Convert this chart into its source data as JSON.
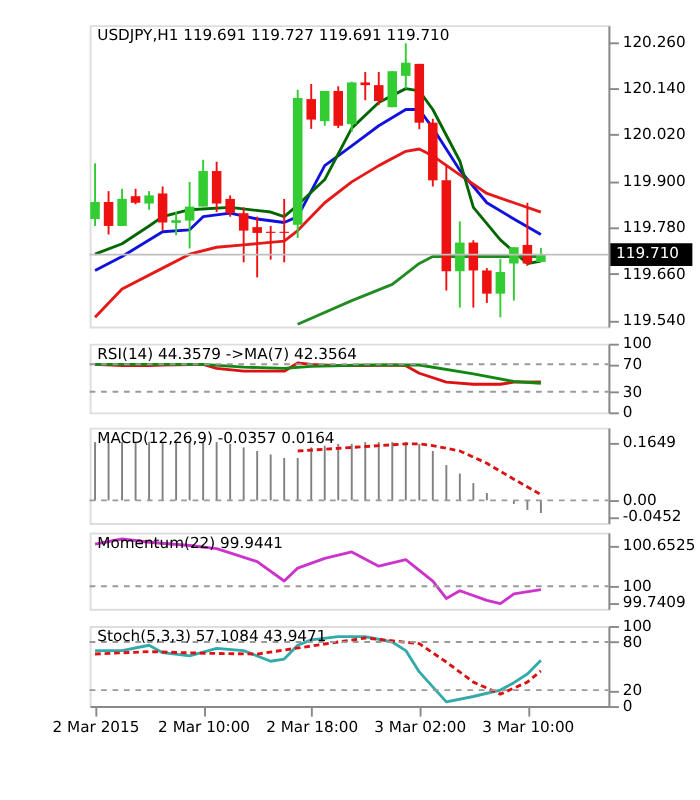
{
  "chart_data": [
    {
      "type": "candlestick",
      "title": "USDJPY,H1  119.691 119.727 119.691 119.710",
      "x": [
        "2015-03-02T02:00",
        "2015-03-02T03:00",
        "2015-03-02T04:00",
        "2015-03-02T05:00",
        "2015-03-02T06:00",
        "2015-03-02T07:00",
        "2015-03-02T08:00",
        "2015-03-02T09:00",
        "2015-03-02T10:00",
        "2015-03-02T11:00",
        "2015-03-02T12:00",
        "2015-03-02T13:00",
        "2015-03-02T14:00",
        "2015-03-02T15:00",
        "2015-03-02T16:00",
        "2015-03-02T17:00",
        "2015-03-02T18:00",
        "2015-03-02T19:00",
        "2015-03-02T20:00",
        "2015-03-02T21:00",
        "2015-03-02T22:00",
        "2015-03-02T23:00",
        "2015-03-03T00:00",
        "2015-03-03T01:00",
        "2015-03-03T02:00",
        "2015-03-03T03:00",
        "2015-03-03T04:00",
        "2015-03-03T05:00",
        "2015-03-03T06:00",
        "2015-03-03T07:00",
        "2015-03-03T08:00",
        "2015-03-03T09:00",
        "2015-03-03T10:00",
        "2015-03-03T11:00"
      ],
      "ohlc": [
        [
          119.802,
          119.946,
          119.784,
          119.846
        ],
        [
          119.846,
          119.874,
          119.762,
          119.784
        ],
        [
          119.784,
          119.88,
          119.784,
          119.854
        ],
        [
          119.861,
          119.88,
          119.84,
          119.844
        ],
        [
          119.842,
          119.874,
          119.826,
          119.863
        ],
        [
          119.868,
          119.886,
          119.772,
          119.793
        ],
        [
          119.792,
          119.82,
          119.76,
          119.799
        ],
        [
          119.798,
          119.898,
          119.726,
          119.834
        ],
        [
          119.834,
          119.955,
          119.834,
          119.926
        ],
        [
          119.926,
          119.95,
          119.82,
          119.842
        ],
        [
          119.854,
          119.863,
          119.808,
          119.817
        ],
        [
          119.817,
          119.832,
          119.69,
          119.772
        ],
        [
          119.781,
          119.808,
          119.651,
          119.766
        ],
        [
          119.769,
          119.784,
          119.697,
          119.766
        ],
        [
          119.769,
          119.854,
          119.69,
          119.766
        ],
        [
          119.787,
          120.136,
          119.753,
          120.115
        ],
        [
          120.112,
          120.151,
          120.035,
          120.059
        ],
        [
          120.055,
          120.133,
          120.043,
          120.133
        ],
        [
          120.133,
          120.145,
          120.037,
          120.043
        ],
        [
          120.047,
          120.157,
          120.027,
          120.155
        ],
        [
          120.155,
          120.182,
          120.109,
          120.148
        ],
        [
          120.148,
          120.182,
          120.097,
          120.107
        ],
        [
          120.091,
          120.184,
          120.091,
          120.184
        ],
        [
          120.172,
          120.256,
          120.139,
          120.206
        ],
        [
          120.203,
          120.203,
          120.034,
          120.051
        ],
        [
          120.051,
          120.061,
          119.886,
          119.902
        ],
        [
          119.902,
          119.94,
          119.617,
          119.667
        ],
        [
          119.667,
          119.796,
          119.573,
          119.741
        ],
        [
          119.741,
          119.747,
          119.573,
          119.669
        ],
        [
          119.669,
          119.675,
          119.585,
          119.609
        ],
        [
          119.609,
          119.699,
          119.548,
          119.665
        ],
        [
          119.687,
          119.729,
          119.591,
          119.729
        ],
        [
          119.735,
          119.844,
          119.681,
          119.687
        ],
        [
          119.691,
          119.727,
          119.691,
          119.71
        ]
      ],
      "colors": [
        "#33cc33",
        "#ee1111",
        "#33cc33",
        "#ee1111",
        "#33cc33",
        "#ee1111",
        "#33cc33",
        "#33cc33",
        "#33cc33",
        "#ee1111",
        "#ee1111",
        "#ee1111",
        "#ee1111",
        "#ee1111",
        "#ee1111",
        "#33cc33",
        "#ee1111",
        "#33cc33",
        "#ee1111",
        "#33cc33",
        "#ee1111",
        "#ee1111",
        "#33cc33",
        "#33cc33",
        "#ee1111",
        "#ee1111",
        "#ee1111",
        "#33cc33",
        "#ee1111",
        "#ee1111",
        "#33cc33",
        "#33cc33",
        "#ee1111",
        "#33cc33"
      ],
      "series": [
        {
          "type": "line",
          "color": "#1111dd",
          "x": [
            "2015-03-02T02:00",
            "2015-03-02T04:00",
            "2015-03-02T07:00",
            "2015-03-02T09:00",
            "2015-03-02T10:00",
            "2015-03-02T12:00",
            "2015-03-02T14:00",
            "2015-03-02T16:00",
            "2015-03-02T17:00",
            "2015-03-02T19:00",
            "2015-03-02T21:00",
            "2015-03-02T23:00",
            "2015-03-03T01:00",
            "2015-03-03T02:00",
            "2015-03-03T03:00",
            "2015-03-03T05:00",
            "2015-03-03T07:00",
            "2015-03-03T09:00",
            "2015-03-03T11:00"
          ],
          "values": [
            119.669,
            119.705,
            119.769,
            119.774,
            119.808,
            119.817,
            119.802,
            119.793,
            119.808,
            119.94,
            119.991,
            120.043,
            120.085,
            120.085,
            120.037,
            119.928,
            119.844,
            119.802,
            119.762
          ]
        },
        {
          "type": "line",
          "color": "#e61919",
          "x": [
            "2015-03-02T02:00",
            "2015-03-02T04:00",
            "2015-03-02T07:00",
            "2015-03-02T09:00",
            "2015-03-02T11:00",
            "2015-03-02T13:00",
            "2015-03-02T16:00",
            "2015-03-02T17:00",
            "2015-03-02T19:00",
            "2015-03-02T21:00",
            "2015-03-02T23:00",
            "2015-03-03T01:00",
            "2015-03-03T02:00",
            "2015-03-03T03:00",
            "2015-03-03T05:00",
            "2015-03-03T07:00",
            "2015-03-03T09:00",
            "2015-03-03T11:00"
          ],
          "values": [
            119.548,
            119.621,
            119.675,
            119.711,
            119.729,
            119.735,
            119.745,
            119.772,
            119.844,
            119.898,
            119.94,
            119.977,
            119.983,
            119.965,
            119.916,
            119.868,
            119.844,
            119.82
          ]
        },
        {
          "type": "line",
          "color": "#006600",
          "x": [
            "2015-03-02T02:00",
            "2015-03-02T04:00",
            "2015-03-02T06:00",
            "2015-03-02T07:00",
            "2015-03-02T09:00",
            "2015-03-02T12:00",
            "2015-03-02T15:00",
            "2015-03-02T16:00",
            "2015-03-02T17:00",
            "2015-03-02T19:00",
            "2015-03-02T21:00",
            "2015-03-02T23:00",
            "2015-03-03T01:00",
            "2015-03-03T02:00",
            "2015-03-03T03:00",
            "2015-03-03T05:00",
            "2015-03-03T06:00",
            "2015-03-03T08:00",
            "2015-03-03T09:00",
            "2015-03-03T10:00",
            "2015-03-03T11:00"
          ],
          "values": [
            119.711,
            119.738,
            119.784,
            119.808,
            119.826,
            119.832,
            119.82,
            119.808,
            119.838,
            119.904,
            120.037,
            120.103,
            120.139,
            120.133,
            120.085,
            119.952,
            119.832,
            119.748,
            119.717,
            119.687,
            119.693
          ]
        },
        {
          "type": "line",
          "color": "#228b22",
          "x": [
            "2015-03-02T17:00",
            "2015-03-02T21:00",
            "2015-03-03T00:00",
            "2015-03-03T02:00",
            "2015-03-03T03:00",
            "2015-03-03T11:00"
          ],
          "values": [
            119.53,
            119.591,
            119.633,
            119.687,
            119.705,
            119.705
          ]
        }
      ],
      "ref_lines": [
        {
          "axis": "y",
          "value": 119.71,
          "label": "119.710",
          "color": "#c0c0c0"
        }
      ],
      "xlim": [
        "2015-03-02T01:36",
        "2015-03-03T16:00"
      ],
      "ylim": [
        119.524,
        120.303
      ],
      "yticks": [
        {
          "value": 120.26,
          "label": "120.260"
        },
        {
          "value": 120.14,
          "label": "120.140"
        },
        {
          "value": 120.02,
          "label": "120.020"
        },
        {
          "value": 119.9,
          "label": "119.900"
        },
        {
          "value": 119.78,
          "label": "119.780"
        },
        {
          "value": 119.66,
          "label": "119.660"
        },
        {
          "value": 119.54,
          "label": "119.540"
        }
      ],
      "tick_labels": "y",
      "grid": false,
      "marker": "none"
    },
    {
      "type": "line",
      "title": "RSI(14) 44.3579  ->MA(7) 42.3564",
      "series": [
        {
          "color": "#dd1111",
          "x": [
            "2015-03-02T02:00",
            "2015-03-02T04:00",
            "2015-03-02T06:00",
            "2015-03-02T07:00",
            "2015-03-02T10:00",
            "2015-03-02T11:00",
            "2015-03-02T13:00",
            "2015-03-02T15:00",
            "2015-03-02T16:00",
            "2015-03-02T17:00",
            "2015-03-02T18:00",
            "2015-03-02T20:00",
            "2015-03-02T22:00",
            "2015-03-03T00:00",
            "2015-03-03T01:00",
            "2015-03-03T02:00",
            "2015-03-03T04:00",
            "2015-03-03T06:00",
            "2015-03-03T08:00",
            "2015-03-03T09:00",
            "2015-03-03T11:00"
          ],
          "values": [
            70,
            68,
            68,
            69,
            70,
            64,
            60,
            60,
            60,
            72,
            70,
            68,
            68,
            69,
            68,
            57,
            44,
            41,
            41,
            44,
            44.36
          ]
        },
        {
          "color": "#118811",
          "x": [
            "2015-03-02T02:00",
            "2015-03-02T10:00",
            "2015-03-02T13:00",
            "2015-03-02T16:00",
            "2015-03-02T18:00",
            "2015-03-02T22:00",
            "2015-03-03T02:00",
            "2015-03-03T06:00",
            "2015-03-03T09:00",
            "2015-03-03T11:00"
          ],
          "values": [
            70,
            70,
            66,
            64,
            67,
            69,
            69,
            56,
            45,
            42.36
          ]
        }
      ],
      "ref_lines": [
        {
          "axis": "y",
          "value": 70,
          "color": "#999999",
          "line_style": "dashed"
        },
        {
          "axis": "y",
          "value": 30,
          "color": "#999999",
          "line_style": "dashed"
        }
      ],
      "xlim": [
        "2015-03-02T01:36",
        "2015-03-03T16:00"
      ],
      "ylim": [
        0,
        100
      ],
      "yticks": [
        100,
        70,
        30,
        0
      ],
      "tick_labels": "y",
      "grid": false,
      "marker": "none"
    },
    {
      "type": "bar",
      "title": "MACD(12,26,9) -0.0357 0.0164",
      "x": [
        "2015-03-02T02:00",
        "2015-03-02T03:00",
        "2015-03-02T04:00",
        "2015-03-02T05:00",
        "2015-03-02T06:00",
        "2015-03-02T07:00",
        "2015-03-02T08:00",
        "2015-03-02T09:00",
        "2015-03-02T10:00",
        "2015-03-02T11:00",
        "2015-03-02T12:00",
        "2015-03-02T13:00",
        "2015-03-02T14:00",
        "2015-03-02T15:00",
        "2015-03-02T16:00",
        "2015-03-02T17:00",
        "2015-03-02T18:00",
        "2015-03-02T19:00",
        "2015-03-02T20:00",
        "2015-03-02T21:00",
        "2015-03-02T22:00",
        "2015-03-02T23:00",
        "2015-03-03T00:00",
        "2015-03-03T01:00",
        "2015-03-03T02:00",
        "2015-03-03T03:00",
        "2015-03-03T04:00",
        "2015-03-03T05:00",
        "2015-03-03T06:00",
        "2015-03-03T07:00",
        "2015-03-03T08:00",
        "2015-03-03T09:00",
        "2015-03-03T10:00",
        "2015-03-03T11:00"
      ],
      "series": [
        {
          "type": "bar",
          "color": "#808080",
          "values": [
            0.165,
            0.165,
            0.165,
            0.165,
            0.165,
            0.165,
            0.165,
            0.165,
            0.165,
            0.165,
            0.16,
            0.15,
            0.14,
            0.13,
            0.12,
            0.12,
            0.15,
            0.155,
            0.16,
            0.16,
            0.165,
            0.165,
            0.165,
            0.165,
            0.16,
            0.14,
            0.1,
            0.076,
            0.049,
            0.021,
            0.0,
            -0.01,
            -0.027,
            -0.0357
          ]
        },
        {
          "type": "line",
          "color": "#dd1111",
          "line_style": "dashed",
          "x": [
            "2015-03-02T17:00",
            "2015-03-02T19:00",
            "2015-03-02T21:00",
            "2015-03-02T23:00",
            "2015-03-03T01:00",
            "2015-03-03T02:00",
            "2015-03-03T03:00",
            "2015-03-03T05:00",
            "2015-03-03T07:00",
            "2015-03-03T09:00",
            "2015-03-03T11:00"
          ],
          "values": [
            0.14,
            0.145,
            0.15,
            0.155,
            0.16,
            0.16,
            0.155,
            0.14,
            0.105,
            0.06,
            0.0164
          ]
        }
      ],
      "ref_lines": [
        {
          "axis": "y",
          "value": 0,
          "color": "#999999",
          "line_style": "dashed"
        }
      ],
      "xlim": [
        "2015-03-02T01:36",
        "2015-03-03T16:00"
      ],
      "ylim": [
        -0.064,
        0.206
      ],
      "yticks": [
        0.1649,
        {
          "value": 0,
          "label": "0.00"
        },
        -0.0452
      ],
      "tick_labels": "y",
      "grid": false,
      "marker": "none"
    },
    {
      "type": "line",
      "title": "Momentum(22) 99.9441",
      "series": [
        {
          "color": "#cc33cc",
          "x": [
            "2015-03-02T02:00",
            "2015-03-02T04:00",
            "2015-03-02T06:00",
            "2015-03-02T09:00",
            "2015-03-02T11:00",
            "2015-03-02T14:00",
            "2015-03-02T16:00",
            "2015-03-02T17:00",
            "2015-03-02T19:00",
            "2015-03-02T21:00",
            "2015-03-02T23:00",
            "2015-03-03T01:00",
            "2015-03-03T03:00",
            "2015-03-03T04:00",
            "2015-03-03T05:00",
            "2015-03-03T07:00",
            "2015-03-03T08:00",
            "2015-03-03T09:00",
            "2015-03-03T11:00"
          ],
          "values": [
            100.673,
            100.756,
            100.704,
            100.653,
            100.601,
            100.394,
            100.083,
            100.29,
            100.445,
            100.549,
            100.321,
            100.425,
            100.083,
            99.803,
            99.927,
            99.772,
            99.72,
            99.876,
            99.9441
          ]
        }
      ],
      "ref_lines": [
        {
          "axis": "y",
          "value": 100,
          "color": "#999999",
          "line_style": "dashed"
        }
      ],
      "xlim": [
        "2015-03-02T01:36",
        "2015-03-03T16:00"
      ],
      "ylim": [
        99.637,
        100.86
      ],
      "yticks": [
        100.6525,
        100,
        99.7409
      ],
      "tick_labels": "y",
      "grid": false,
      "marker": "none"
    },
    {
      "type": "line",
      "title": "Stoch(5,3,3) 57.1084 43.9471",
      "series": [
        {
          "color": "#33aaaa",
          "x": [
            "2015-03-02T02:00",
            "2015-03-02T04:00",
            "2015-03-02T06:00",
            "2015-03-02T07:00",
            "2015-03-02T09:00",
            "2015-03-02T11:00",
            "2015-03-02T13:00",
            "2015-03-02T15:00",
            "2015-03-02T16:00",
            "2015-03-02T17:00",
            "2015-03-02T18:00",
            "2015-03-02T20:00",
            "2015-03-02T22:00",
            "2015-03-03T00:00",
            "2015-03-03T01:00",
            "2015-03-03T02:00",
            "2015-03-03T04:00",
            "2015-03-03T06:00",
            "2015-03-03T08:00",
            "2015-03-03T09:00",
            "2015-03-03T10:00",
            "2015-03-03T11:00"
          ],
          "values": [
            69.3,
            69.3,
            76,
            66.7,
            62.7,
            72,
            69.3,
            56,
            58.7,
            76,
            82.7,
            86.7,
            86.7,
            80,
            69.3,
            42.7,
            5.3,
            12,
            20,
            29.3,
            40,
            57.11
          ]
        },
        {
          "color": "#dd1111",
          "line_style": "dashed",
          "x": [
            "2015-03-02T02:00",
            "2015-03-02T06:00",
            "2015-03-02T10:00",
            "2015-03-02T14:00",
            "2015-03-02T18:00",
            "2015-03-02T22:00",
            "2015-03-03T02:00",
            "2015-03-03T04:00",
            "2015-03-03T06:00",
            "2015-03-03T08:00",
            "2015-03-03T10:00",
            "2015-03-03T11:00"
          ],
          "values": [
            65,
            68,
            66,
            65,
            75,
            85,
            78,
            55,
            30,
            15,
            30,
            43.95
          ]
        }
      ],
      "ref_lines": [
        {
          "axis": "y",
          "value": 80,
          "color": "#999999",
          "line_style": "dashed"
        },
        {
          "axis": "y",
          "value": 20,
          "color": "#999999",
          "line_style": "dashed"
        }
      ],
      "xlim": [
        "2015-03-02T01:36",
        "2015-03-03T16:00"
      ],
      "ylim": [
        0,
        100
      ],
      "yticks": [
        100,
        80,
        20,
        0
      ],
      "xticks": [
        {
          "value": "2015-03-02T02:00",
          "label": "2 Mar 2015"
        },
        {
          "value": "2015-03-02T10:00",
          "label": "2 Mar 10:00"
        },
        {
          "value": "2015-03-02T18:00",
          "label": "2 Mar 18:00"
        },
        {
          "value": "2015-03-03T02:00",
          "label": "3 Mar 02:00"
        },
        {
          "value": "2015-03-03T10:00",
          "label": "3 Mar 10:00"
        }
      ],
      "grid": false,
      "marker": "none"
    }
  ]
}
